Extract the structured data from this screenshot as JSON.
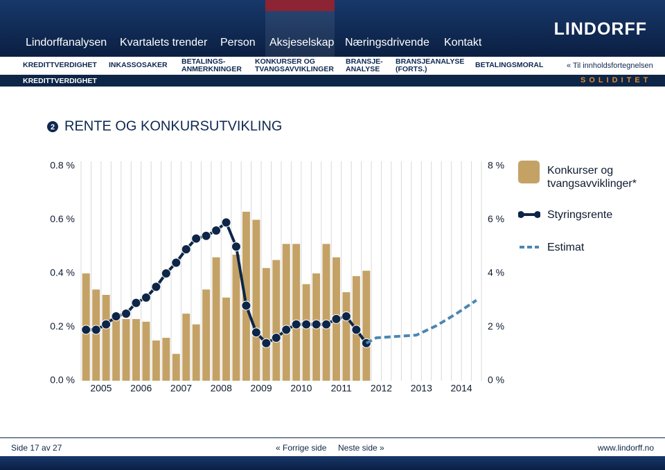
{
  "nav": {
    "links": [
      "Lindorffanalysen",
      "Kvartalets trender",
      "Person",
      "Aksjeselskap",
      "Næringsdrivende",
      "Kontakt"
    ],
    "logo": "LINDORFF"
  },
  "subnav": {
    "items": [
      [
        "KREDITTVERDIGHET"
      ],
      [
        "INKASSOSAKER"
      ],
      [
        "BETALINGS-",
        "ANMERKNINGER"
      ],
      [
        "KONKURSER OG",
        "TVANGSAVVIKLINGER"
      ],
      [
        "BRANSJE-",
        "ANALYSE"
      ],
      [
        "BRANSJEANALYSE",
        "(FORTS.)"
      ],
      [
        "BETALINGSMORAL"
      ]
    ],
    "back": "« Til innholdsfortegnelsen"
  },
  "section": {
    "name": "KREDITTVERDIGHET",
    "topic": "SOLIDITET"
  },
  "heading": {
    "number": "2",
    "title": "RENTE OG KONKURSUTVIKLING"
  },
  "chart_data": {
    "type": "bar",
    "xlim": [
      2005,
      2015
    ],
    "xticks": [
      {
        "value": 2005.5,
        "label": "2005"
      },
      {
        "value": 2006.5,
        "label": "2006"
      },
      {
        "value": 2007.5,
        "label": "2007"
      },
      {
        "value": 2008.5,
        "label": "2008"
      },
      {
        "value": 2009.5,
        "label": "2009"
      },
      {
        "value": 2010.5,
        "label": "2010"
      },
      {
        "value": 2011.5,
        "label": "2011"
      },
      {
        "value": 2012.5,
        "label": "2012"
      },
      {
        "value": 2013.5,
        "label": "2013"
      },
      {
        "value": 2014.5,
        "label": "2014"
      }
    ],
    "x_grid": [
      2005,
      2005.25,
      2005.5,
      2005.75,
      2006,
      2006.25,
      2006.5,
      2006.75,
      2007,
      2007.25,
      2007.5,
      2007.75,
      2008,
      2008.25,
      2008.5,
      2008.75,
      2009,
      2009.25,
      2009.5,
      2009.75,
      2010,
      2010.25,
      2010.5,
      2010.75,
      2011,
      2011.25,
      2011.5,
      2011.75,
      2012,
      2012.25,
      2012.5,
      2012.75,
      2013,
      2013.25,
      2013.5,
      2013.75,
      2014,
      2014.25,
      2014.5,
      2014.75,
      2015
    ],
    "ylim": [
      0,
      0.8
    ],
    "yticks": [
      {
        "value": 0,
        "label": "0.0 %"
      },
      {
        "value": 0.2,
        "label": "0.2 %"
      },
      {
        "value": 0.4,
        "label": "0.4 %"
      },
      {
        "value": 0.6,
        "label": "0.6 %"
      },
      {
        "value": 0.8,
        "label": "0.8 %"
      }
    ],
    "y2lim": [
      0,
      8
    ],
    "y2ticks": [
      {
        "value": 0,
        "label": "0 %"
      },
      {
        "value": 2,
        "label": "2 %"
      },
      {
        "value": 4,
        "label": "4 %"
      },
      {
        "value": 6,
        "label": "6 %"
      },
      {
        "value": 8,
        "label": "8 %"
      }
    ],
    "series": [
      {
        "name": "Konkurser og tvangsavviklinger*",
        "type": "bar",
        "color": "#c4a266",
        "x": [
          2005.125,
          2005.375,
          2005.625,
          2005.875,
          2006.125,
          2006.375,
          2006.625,
          2006.875,
          2007.125,
          2007.375,
          2007.625,
          2007.875,
          2008.125,
          2008.375,
          2008.625,
          2008.875,
          2009.125,
          2009.375,
          2009.625,
          2009.875,
          2010.125,
          2010.375,
          2010.625,
          2010.875,
          2011.125,
          2011.375,
          2011.625,
          2011.875,
          2012.125
        ],
        "values": [
          0.4,
          0.34,
          0.32,
          0.23,
          0.23,
          0.23,
          0.22,
          0.15,
          0.16,
          0.1,
          0.25,
          0.21,
          0.34,
          0.46,
          0.31,
          0.47,
          0.63,
          0.6,
          0.42,
          0.45,
          0.51,
          0.51,
          0.36,
          0.4,
          0.51,
          0.46,
          0.33,
          0.39,
          0.41
        ]
      },
      {
        "name": "Styringsrente",
        "type": "line",
        "axis": "y2",
        "color": "#0d2547",
        "markers": true,
        "x": [
          2005.125,
          2005.375,
          2005.625,
          2005.875,
          2006.125,
          2006.375,
          2006.625,
          2006.875,
          2007.125,
          2007.375,
          2007.625,
          2007.875,
          2008.125,
          2008.375,
          2008.625,
          2008.875,
          2009.125,
          2009.375,
          2009.625,
          2009.875,
          2010.125,
          2010.375,
          2010.625,
          2010.875,
          2011.125,
          2011.375,
          2011.625,
          2011.875,
          2012.125
        ],
        "values": [
          1.9,
          1.9,
          2.1,
          2.4,
          2.5,
          2.9,
          3.1,
          3.5,
          4.0,
          4.4,
          4.9,
          5.3,
          5.4,
          5.6,
          5.9,
          5.0,
          2.8,
          1.8,
          1.4,
          1.6,
          1.9,
          2.1,
          2.1,
          2.1,
          2.1,
          2.3,
          2.4,
          1.9,
          1.4
        ]
      },
      {
        "name": "Estimat",
        "type": "line",
        "axis": "y2",
        "color": "#4a86b4",
        "dashed": true,
        "x": [
          2012.125,
          2012.375,
          2012.875,
          2013.375,
          2013.875,
          2014.375,
          2014.875
        ],
        "values": [
          1.4,
          1.6,
          1.65,
          1.7,
          2.05,
          2.5,
          3.0
        ]
      }
    ]
  },
  "footer": {
    "page": "Side 17 av 27",
    "prev": "« Forrige side",
    "next": "Neste side »",
    "url": "www.lindorff.no"
  }
}
